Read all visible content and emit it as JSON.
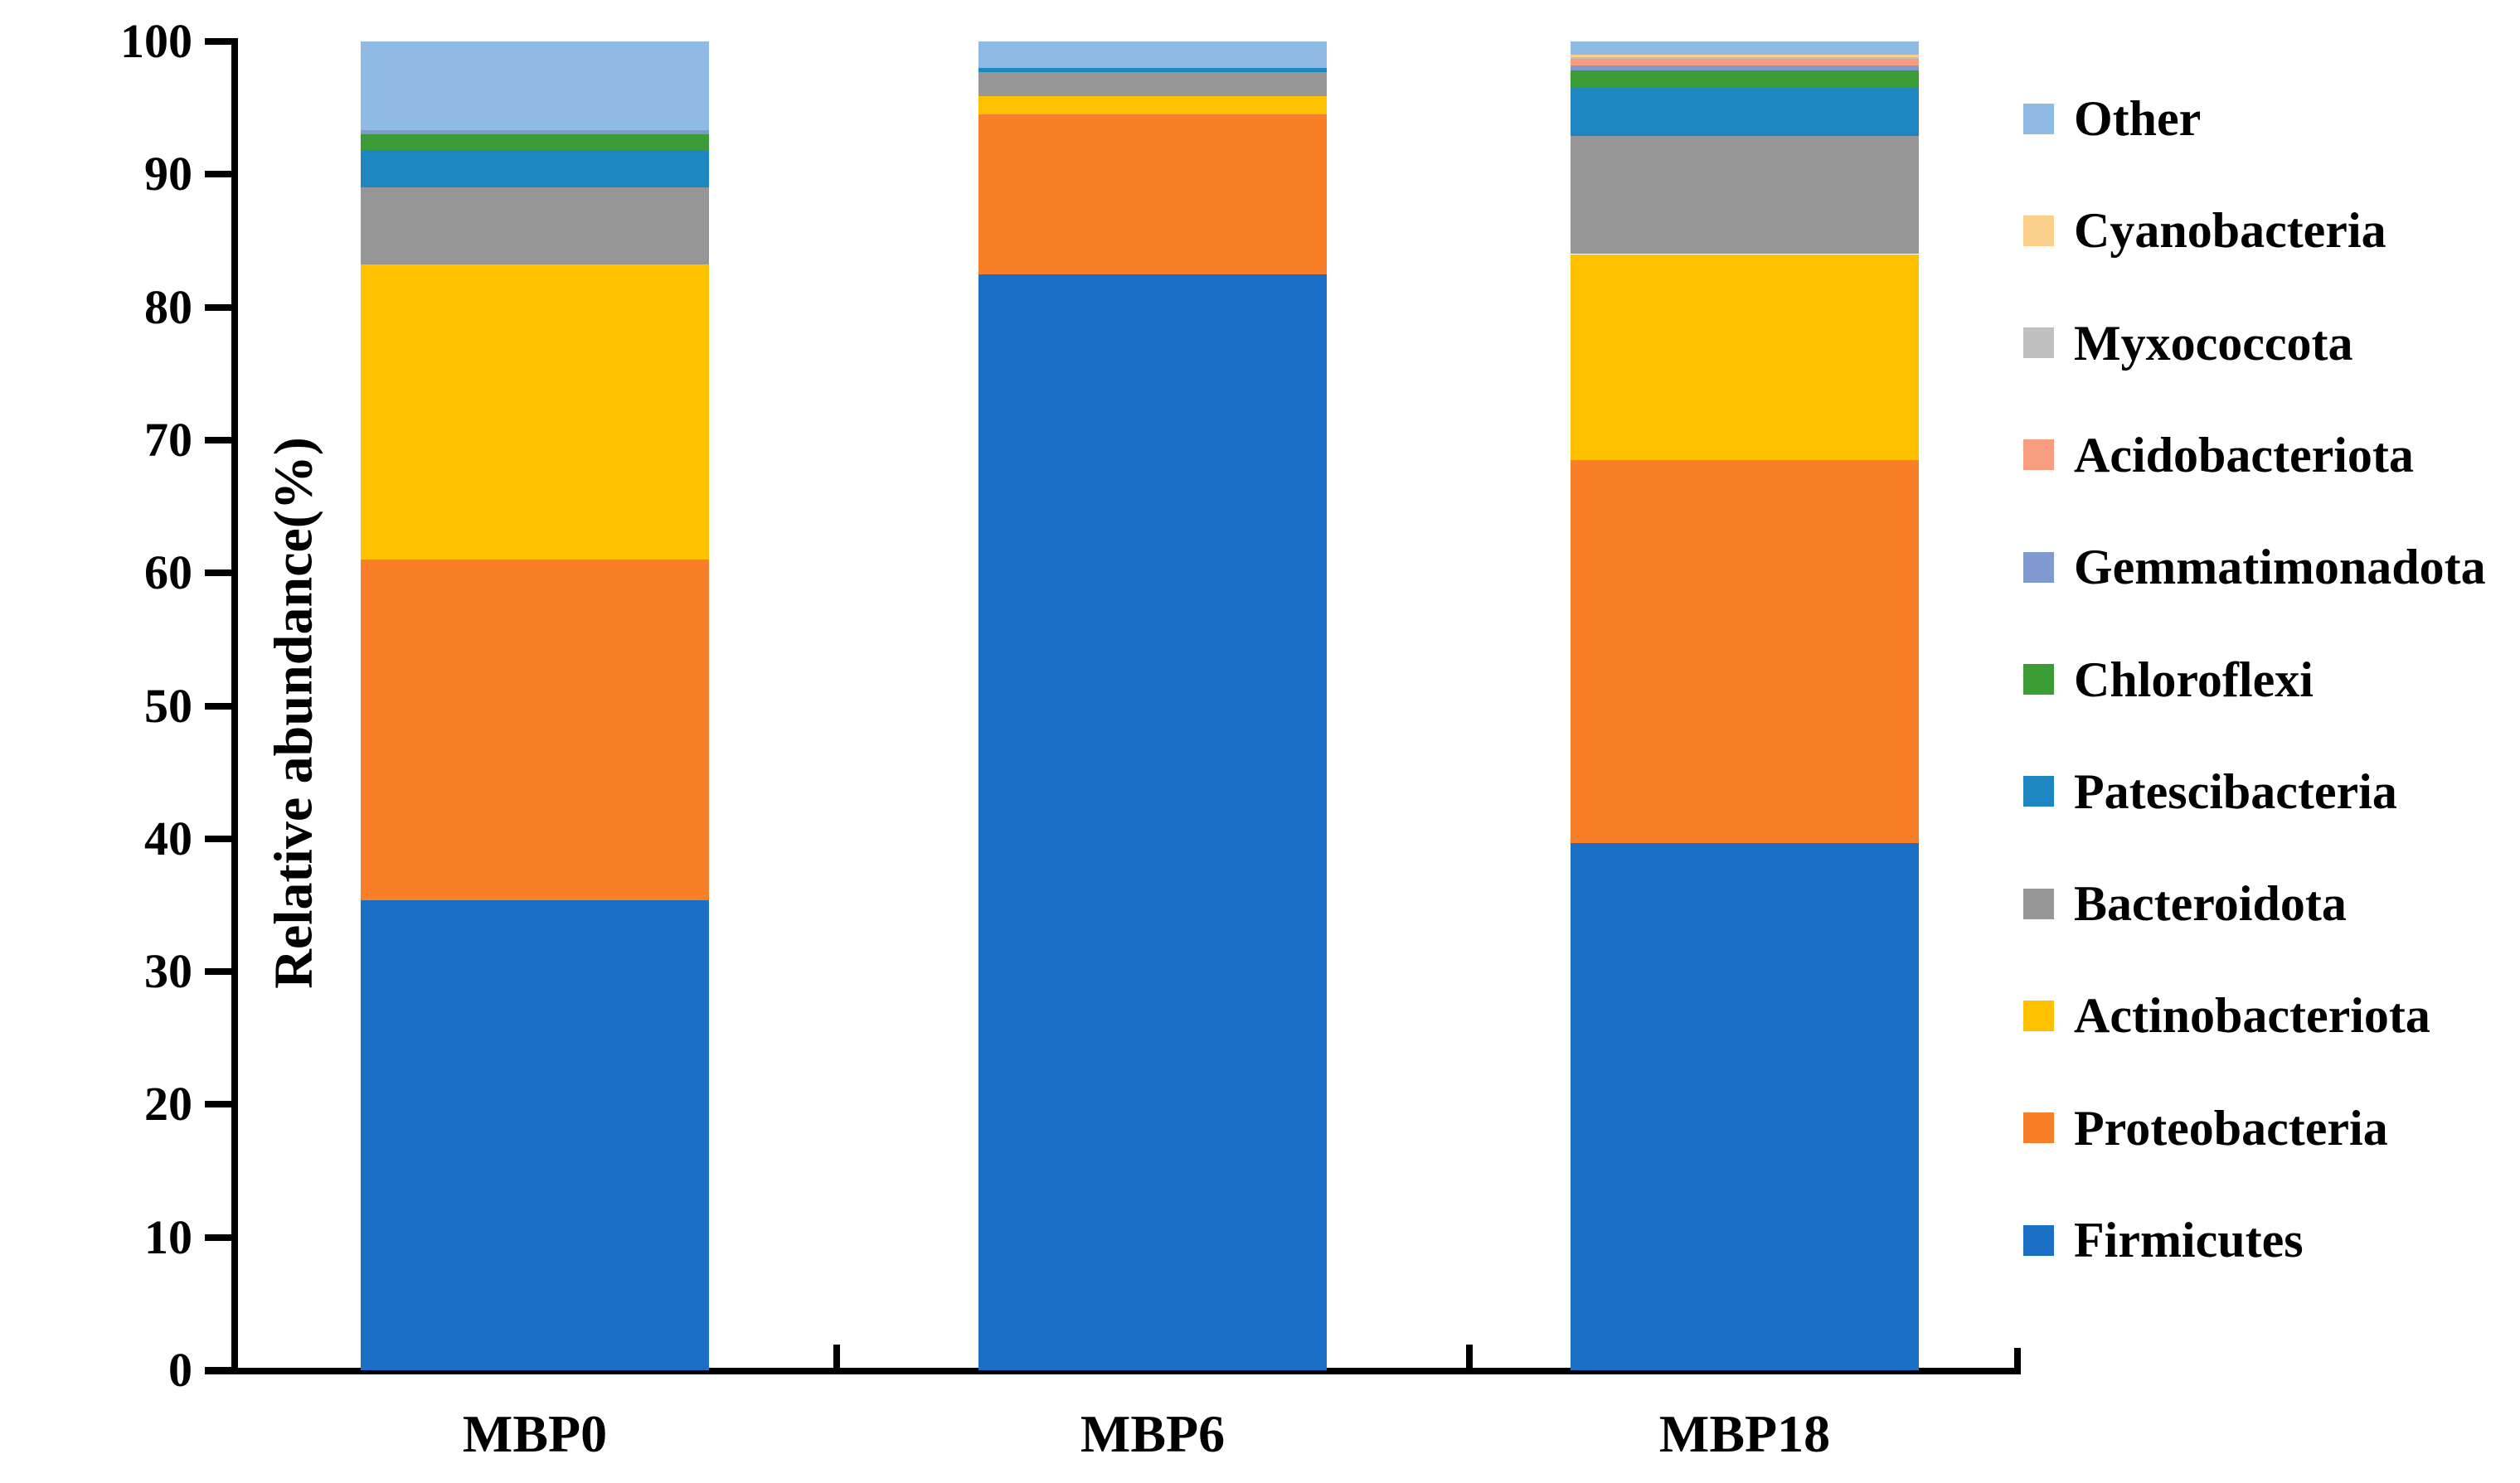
{
  "figure_background": "#ffffff",
  "y_axis": {
    "title": "Relative abundance(%)",
    "tick_labels": [
      "0",
      "10",
      "20",
      "30",
      "40",
      "50",
      "60",
      "70",
      "80",
      "90",
      "100"
    ],
    "min": 0,
    "max": 100
  },
  "x_axis": {
    "categories": [
      "MBP0",
      "MBP6",
      "MBP18"
    ]
  },
  "legend": {
    "position": "right",
    "items_top_to_bottom": [
      {
        "label": "Other",
        "color": "#8FBAE3"
      },
      {
        "label": "Cyanobacteria",
        "color": "#FBD08A"
      },
      {
        "label": "Myxococcota",
        "color": "#BFBFBF"
      },
      {
        "label": "Acidobacteriota",
        "color": "#F99D81"
      },
      {
        "label": "Gemmatimonadota",
        "color": "#8099D1"
      },
      {
        "label": "Chloroflexi",
        "color": "#3B9B35"
      },
      {
        "label": "Patescibacteria",
        "color": "#1E86C0"
      },
      {
        "label": "Bacteroidota",
        "color": "#969696"
      },
      {
        "label": "Actinobacteriota",
        "color": "#FFC000"
      },
      {
        "label": "Proteobacteria",
        "color": "#F87E27"
      },
      {
        "label": "Firmicutes",
        "color": "#1B6FC4"
      }
    ]
  },
  "chart_data": {
    "type": "bar",
    "stacked": true,
    "title": "",
    "xlabel": "",
    "ylabel": "Relative abundance(%)",
    "ylim": [
      0,
      100
    ],
    "grid": false,
    "legend_position": "right",
    "categories": [
      "MBP0",
      "MBP6",
      "MBP18"
    ],
    "units": "percent",
    "series_bottom_to_top": [
      {
        "name": "Firmicutes",
        "color": "#1B6FC4",
        "values": [
          35.4,
          82.5,
          39.7
        ]
      },
      {
        "name": "Proteobacteria",
        "color": "#F87E27",
        "values": [
          25.6,
          12.0,
          28.8
        ]
      },
      {
        "name": "Actinobacteriota",
        "color": "#FFC000",
        "values": [
          22.2,
          1.4,
          15.5
        ]
      },
      {
        "name": "Bacteroidota",
        "color": "#969696",
        "values": [
          5.8,
          1.8,
          8.9
        ]
      },
      {
        "name": "Patescibacteria",
        "color": "#1E86C0",
        "values": [
          2.8,
          0.3,
          3.6
        ]
      },
      {
        "name": "Chloroflexi",
        "color": "#3B9B35",
        "values": [
          1.2,
          0.0,
          1.3
        ]
      },
      {
        "name": "Gemmatimonadota",
        "color": "#8099D1",
        "values": [
          0.3,
          0.0,
          0.4
        ]
      },
      {
        "name": "Acidobacteriota",
        "color": "#F99D81",
        "values": [
          0.0,
          0.0,
          0.5
        ]
      },
      {
        "name": "Myxococcota",
        "color": "#BFBFBF",
        "values": [
          0.0,
          0.0,
          0.1
        ]
      },
      {
        "name": "Cyanobacteria",
        "color": "#FBD08A",
        "values": [
          0.0,
          0.0,
          0.2
        ]
      },
      {
        "name": "Other",
        "color": "#8FBAE3",
        "values": [
          6.7,
          2.0,
          1.0
        ]
      }
    ]
  },
  "layout_note": "stacked 100% bar chart, three bars, legend right, no gridlines"
}
